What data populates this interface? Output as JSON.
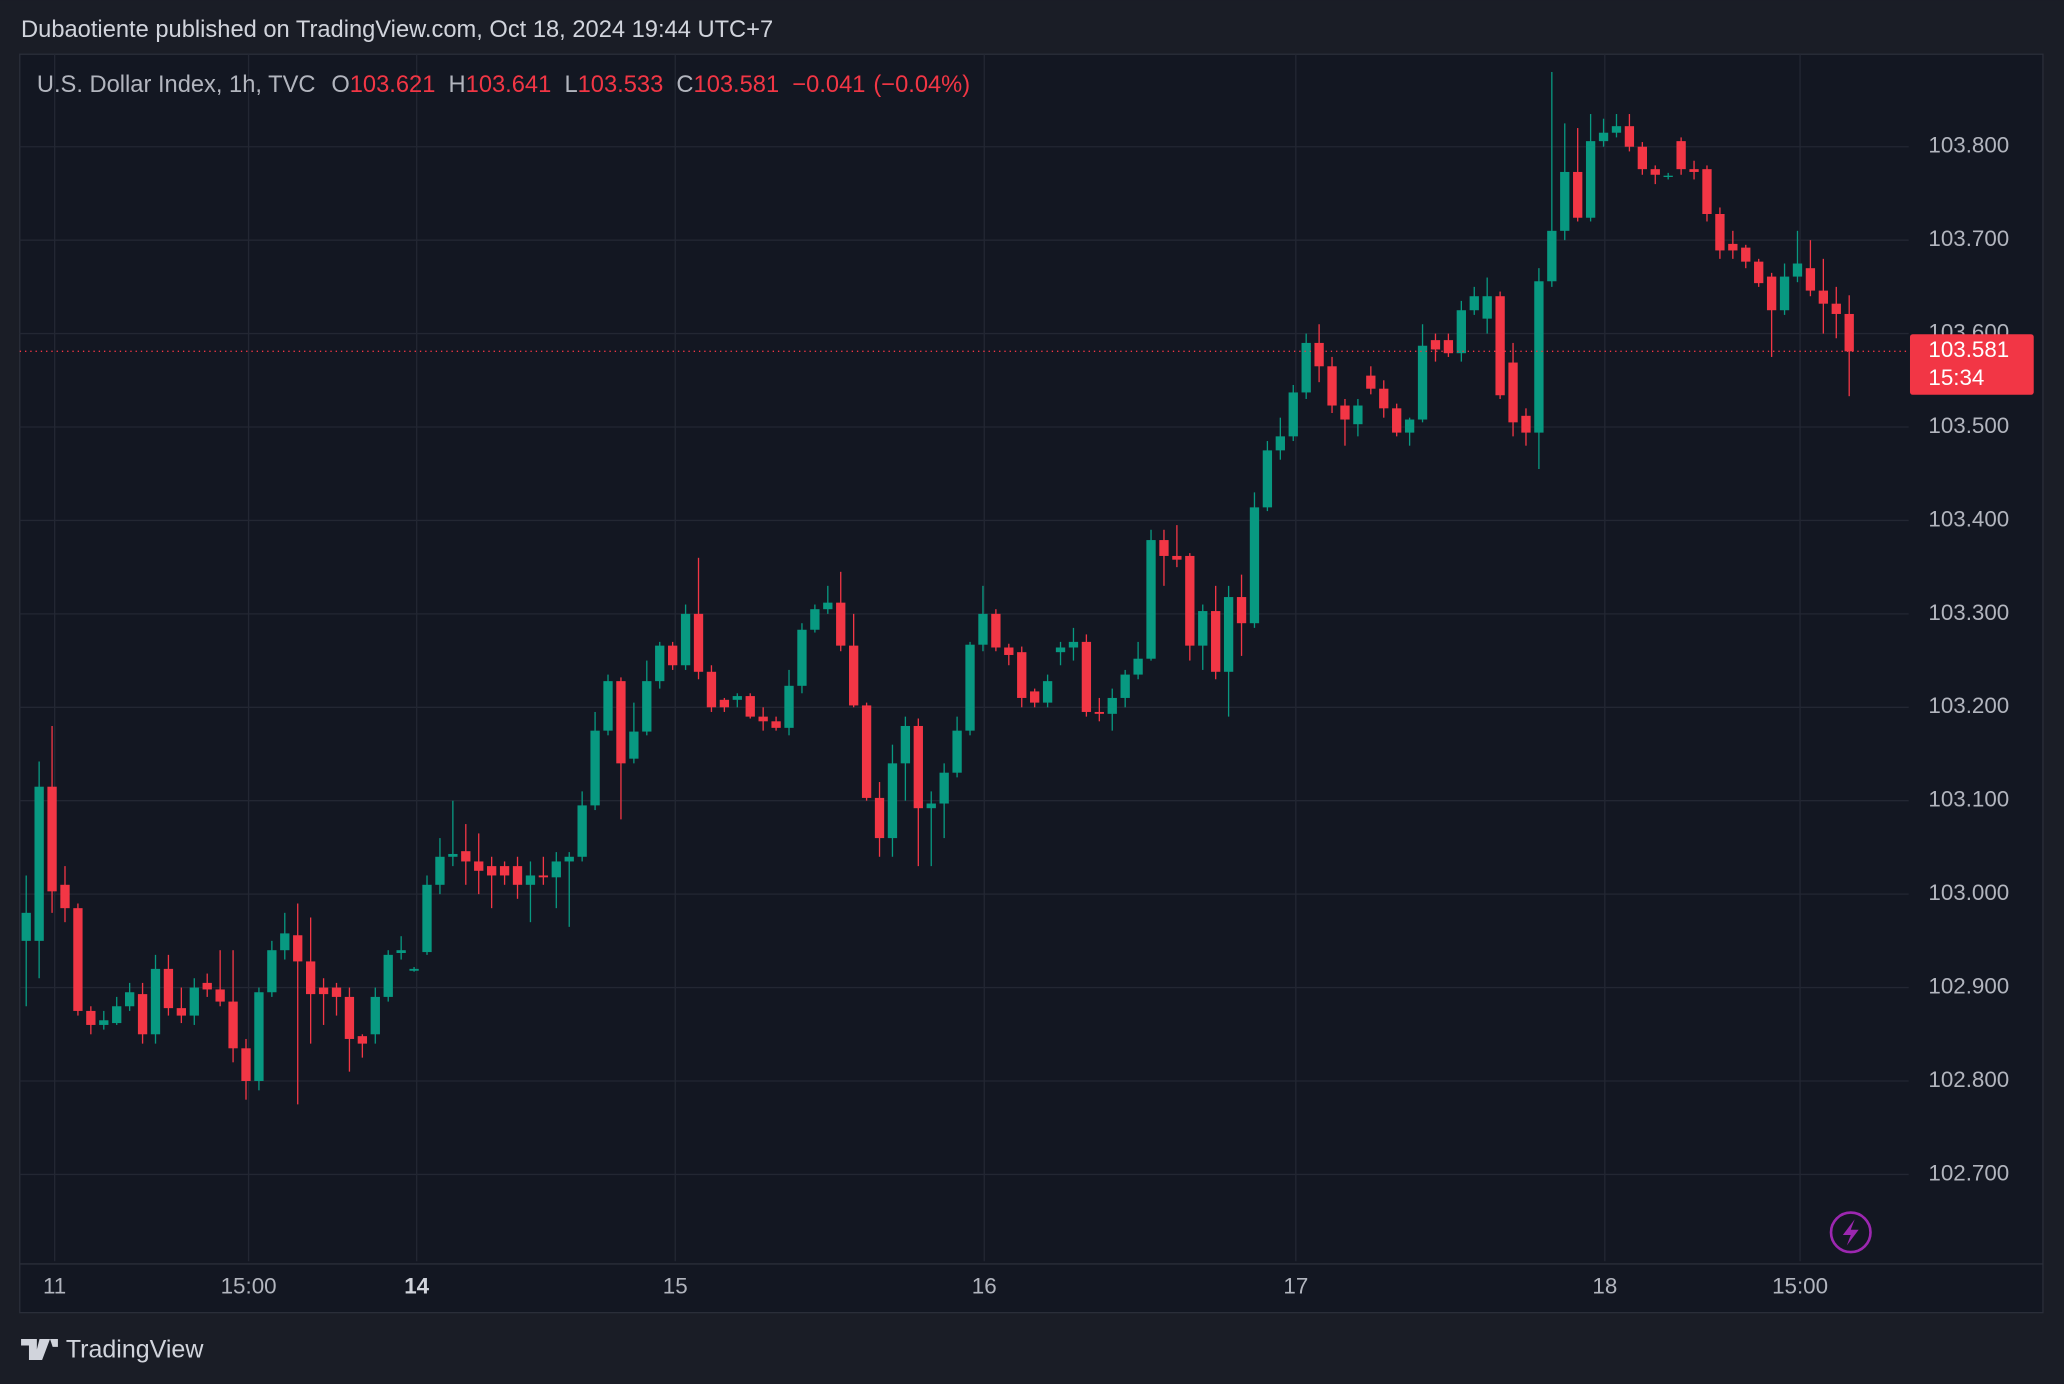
{
  "chart_data": {
    "type": "candlestick",
    "attribution": "Dubaotiente published on TradingView.com, Oct 18, 2024 19:44 UTC+7",
    "symbol": "U.S. Dollar Index, 1h, TVC",
    "ohlc_legend": [
      {
        "key": "O",
        "value": 103.621
      },
      {
        "key": "H",
        "value": 103.641
      },
      {
        "key": "L",
        "value": 103.533
      },
      {
        "key": "C",
        "value": 103.581
      }
    ],
    "change": {
      "value": -0.041,
      "label": "−0.041"
    },
    "change_pct": {
      "value": -0.04,
      "label": "(−0.04%)"
    },
    "last_price": 103.581,
    "countdown": "15:34",
    "brand": "TradingView",
    "colors": {
      "up": "#089981",
      "down": "#f23645"
    },
    "grid": true,
    "xlim": [
      -0.5,
      145.6
    ],
    "xticks": [
      {
        "value": 2.2,
        "label": "11"
      },
      {
        "value": 17.2,
        "label": "15:00"
      },
      {
        "value": 30.2,
        "label": "14",
        "bold": true
      },
      {
        "value": 50.2,
        "label": "15"
      },
      {
        "value": 74.1,
        "label": "16"
      },
      {
        "value": 98.2,
        "label": "17"
      },
      {
        "value": 122.1,
        "label": "18"
      },
      {
        "value": 137.2,
        "label": "15:00"
      }
    ],
    "ylim": [
      102.607,
      103.899
    ],
    "yticks": [
      {
        "value": 102.7,
        "label": "102.700"
      },
      {
        "value": 102.8,
        "label": "102.800"
      },
      {
        "value": 102.9,
        "label": "102.900"
      },
      {
        "value": 103.0,
        "label": "103.000"
      },
      {
        "value": 103.1,
        "label": "103.100"
      },
      {
        "value": 103.2,
        "label": "103.200"
      },
      {
        "value": 103.3,
        "label": "103.300"
      },
      {
        "value": 103.4,
        "label": "103.400"
      },
      {
        "value": 103.5,
        "label": "103.500"
      },
      {
        "value": 103.6,
        "label": "103.600"
      },
      {
        "value": 103.7,
        "label": "103.700"
      },
      {
        "value": 103.8,
        "label": "103.800"
      }
    ],
    "candles": [
      [
        102.95,
        103.02,
        102.88,
        102.98
      ],
      [
        102.95,
        103.142,
        102.91,
        103.115
      ],
      [
        103.115,
        103.18,
        102.98,
        103.003
      ],
      [
        103.01,
        103.03,
        102.97,
        102.985
      ],
      [
        102.985,
        102.99,
        102.87,
        102.875
      ],
      [
        102.875,
        102.88,
        102.85,
        102.86
      ],
      [
        102.86,
        102.875,
        102.855,
        102.865
      ],
      [
        102.862,
        102.89,
        102.86,
        102.88
      ],
      [
        102.88,
        102.905,
        102.875,
        102.895
      ],
      [
        102.893,
        102.905,
        102.84,
        102.85
      ],
      [
        102.85,
        102.935,
        102.84,
        102.92
      ],
      [
        102.92,
        102.935,
        102.87,
        102.878
      ],
      [
        102.878,
        102.9,
        102.862,
        102.87
      ],
      [
        102.87,
        102.91,
        102.86,
        102.9
      ],
      [
        102.905,
        102.915,
        102.89,
        102.898
      ],
      [
        102.898,
        102.94,
        102.88,
        102.885
      ],
      [
        102.885,
        102.94,
        102.82,
        102.835
      ],
      [
        102.835,
        102.845,
        102.78,
        102.8
      ],
      [
        102.8,
        102.9,
        102.79,
        102.895
      ],
      [
        102.895,
        102.95,
        102.89,
        102.94
      ],
      [
        102.94,
        102.98,
        102.93,
        102.958
      ],
      [
        102.956,
        102.99,
        102.775,
        102.928
      ],
      [
        102.928,
        102.975,
        102.84,
        102.893
      ],
      [
        102.9,
        102.91,
        102.86,
        102.893
      ],
      [
        102.9,
        102.905,
        102.87,
        102.89
      ],
      [
        102.89,
        102.9,
        102.81,
        102.845
      ],
      [
        102.848,
        102.85,
        102.825,
        102.84
      ],
      [
        102.85,
        102.9,
        102.84,
        102.89
      ],
      [
        102.89,
        102.94,
        102.885,
        102.935
      ],
      [
        102.937,
        102.955,
        102.93,
        102.94
      ],
      [
        102.918,
        102.922,
        102.917,
        102.92
      ],
      [
        102.938,
        103.02,
        102.935,
        103.01
      ],
      [
        103.01,
        103.06,
        103.0,
        103.04
      ],
      [
        103.04,
        103.1,
        103.03,
        103.043
      ],
      [
        103.046,
        103.075,
        103.01,
        103.035
      ],
      [
        103.035,
        103.065,
        103.0,
        103.025
      ],
      [
        103.03,
        103.04,
        102.985,
        103.02
      ],
      [
        103.03,
        103.035,
        103.01,
        103.02
      ],
      [
        103.03,
        103.04,
        102.995,
        103.01
      ],
      [
        103.01,
        103.035,
        102.97,
        103.02
      ],
      [
        103.02,
        103.04,
        103.01,
        103.018
      ],
      [
        103.018,
        103.045,
        102.985,
        103.035
      ],
      [
        103.035,
        103.045,
        102.965,
        103.04
      ],
      [
        103.04,
        103.11,
        103.035,
        103.095
      ],
      [
        103.095,
        103.195,
        103.09,
        103.175
      ],
      [
        103.175,
        103.235,
        103.17,
        103.228
      ],
      [
        103.228,
        103.232,
        103.08,
        103.14
      ],
      [
        103.145,
        103.205,
        103.14,
        103.174
      ],
      [
        103.174,
        103.25,
        103.17,
        103.228
      ],
      [
        103.228,
        103.27,
        103.22,
        103.266
      ],
      [
        103.266,
        103.27,
        103.24,
        103.245
      ],
      [
        103.245,
        103.31,
        103.24,
        103.3
      ],
      [
        103.3,
        103.36,
        103.23,
        103.238
      ],
      [
        103.238,
        103.245,
        103.195,
        103.2
      ],
      [
        103.208,
        103.21,
        103.195,
        103.2
      ],
      [
        103.208,
        103.215,
        103.2,
        103.212
      ],
      [
        103.212,
        103.215,
        103.188,
        103.19
      ],
      [
        103.19,
        103.2,
        103.175,
        103.185
      ],
      [
        103.185,
        103.19,
        103.175,
        103.178
      ],
      [
        103.178,
        103.24,
        103.17,
        103.223
      ],
      [
        103.223,
        103.29,
        103.215,
        103.283
      ],
      [
        103.283,
        103.31,
        103.28,
        103.305
      ],
      [
        103.305,
        103.33,
        103.3,
        103.312
      ],
      [
        103.312,
        103.345,
        103.26,
        103.266
      ],
      [
        103.266,
        103.3,
        103.2,
        103.202
      ],
      [
        103.202,
        103.205,
        103.1,
        103.103
      ],
      [
        103.103,
        103.12,
        103.04,
        103.06
      ],
      [
        103.06,
        103.16,
        103.04,
        103.14
      ],
      [
        103.14,
        103.19,
        103.1,
        103.18
      ],
      [
        103.18,
        103.188,
        103.03,
        103.092
      ],
      [
        103.092,
        103.11,
        103.03,
        103.097
      ],
      [
        103.097,
        103.14,
        103.06,
        103.13
      ],
      [
        103.13,
        103.19,
        103.125,
        103.175
      ],
      [
        103.175,
        103.27,
        103.17,
        103.267
      ],
      [
        103.267,
        103.33,
        103.26,
        103.3
      ],
      [
        103.3,
        103.305,
        103.26,
        103.264
      ],
      [
        103.264,
        103.268,
        103.245,
        103.256
      ],
      [
        103.259,
        103.265,
        103.2,
        103.21
      ],
      [
        103.217,
        103.22,
        103.2,
        103.205
      ],
      [
        103.205,
        103.235,
        103.2,
        103.228
      ],
      [
        103.259,
        103.27,
        103.245,
        103.264
      ],
      [
        103.264,
        103.285,
        103.25,
        103.27
      ],
      [
        103.27,
        103.278,
        103.19,
        103.195
      ],
      [
        103.195,
        103.21,
        103.185,
        103.193
      ],
      [
        103.193,
        103.22,
        103.175,
        103.21
      ],
      [
        103.21,
        103.24,
        103.2,
        103.235
      ],
      [
        103.235,
        103.27,
        103.23,
        103.252
      ],
      [
        103.252,
        103.39,
        103.25,
        103.379
      ],
      [
        103.379,
        103.39,
        103.33,
        103.362
      ],
      [
        103.362,
        103.395,
        103.35,
        103.358
      ],
      [
        103.362,
        103.365,
        103.25,
        103.266
      ],
      [
        103.266,
        103.31,
        103.24,
        103.303
      ],
      [
        103.303,
        103.33,
        103.23,
        103.238
      ],
      [
        103.238,
        103.33,
        103.19,
        103.318
      ],
      [
        103.318,
        103.342,
        103.255,
        103.29
      ],
      [
        103.29,
        103.43,
        103.285,
        103.414
      ],
      [
        103.414,
        103.485,
        103.41,
        103.475
      ],
      [
        103.475,
        103.51,
        103.465,
        103.49
      ],
      [
        103.49,
        103.545,
        103.485,
        103.537
      ],
      [
        103.537,
        103.6,
        103.53,
        103.59
      ],
      [
        103.59,
        103.61,
        103.548,
        103.565
      ],
      [
        103.565,
        103.575,
        103.515,
        103.523
      ],
      [
        103.523,
        103.53,
        103.48,
        103.508
      ],
      [
        103.503,
        103.53,
        103.49,
        103.523
      ],
      [
        103.555,
        103.565,
        103.535,
        103.541
      ],
      [
        103.541,
        103.55,
        103.51,
        103.52
      ],
      [
        103.52,
        103.525,
        103.49,
        103.494
      ],
      [
        103.494,
        103.51,
        103.48,
        103.508
      ],
      [
        103.508,
        103.61,
        103.505,
        103.587
      ],
      [
        103.593,
        103.6,
        103.57,
        103.583
      ],
      [
        103.593,
        103.6,
        103.575,
        103.579
      ],
      [
        103.579,
        103.635,
        103.57,
        103.625
      ],
      [
        103.625,
        103.65,
        103.62,
        103.64
      ],
      [
        103.616,
        103.66,
        103.6,
        103.64
      ],
      [
        103.64,
        103.645,
        103.53,
        103.534
      ],
      [
        103.569,
        103.59,
        103.49,
        103.505
      ],
      [
        103.512,
        103.52,
        103.48,
        103.494
      ],
      [
        103.494,
        103.67,
        103.455,
        103.656
      ],
      [
        103.656,
        103.88,
        103.65,
        103.71
      ],
      [
        103.71,
        103.825,
        103.7,
        103.773
      ],
      [
        103.773,
        103.82,
        103.72,
        103.724
      ],
      [
        103.724,
        103.835,
        103.72,
        103.806
      ],
      [
        103.806,
        103.83,
        103.8,
        103.815
      ],
      [
        103.815,
        103.835,
        103.81,
        103.822
      ],
      [
        103.822,
        103.835,
        103.795,
        103.8
      ],
      [
        103.8,
        103.805,
        103.77,
        103.776
      ],
      [
        103.776,
        103.78,
        103.76,
        103.77
      ],
      [
        103.768,
        103.772,
        103.765,
        103.769
      ],
      [
        103.806,
        103.81,
        103.77,
        103.776
      ],
      [
        103.776,
        103.785,
        103.765,
        103.773
      ],
      [
        103.776,
        103.78,
        103.72,
        103.728
      ],
      [
        103.728,
        103.735,
        103.68,
        103.689
      ],
      [
        103.696,
        103.71,
        103.68,
        103.689
      ],
      [
        103.692,
        103.695,
        103.67,
        103.677
      ],
      [
        103.677,
        103.68,
        103.65,
        103.654
      ],
      [
        103.661,
        103.665,
        103.575,
        103.625
      ],
      [
        103.625,
        103.675,
        103.62,
        103.661
      ],
      [
        103.661,
        103.71,
        103.655,
        103.675
      ],
      [
        103.67,
        103.7,
        103.64,
        103.646
      ],
      [
        103.646,
        103.68,
        103.6,
        103.632
      ],
      [
        103.632,
        103.65,
        103.595,
        103.621
      ],
      [
        103.621,
        103.641,
        103.533,
        103.581
      ]
    ]
  }
}
